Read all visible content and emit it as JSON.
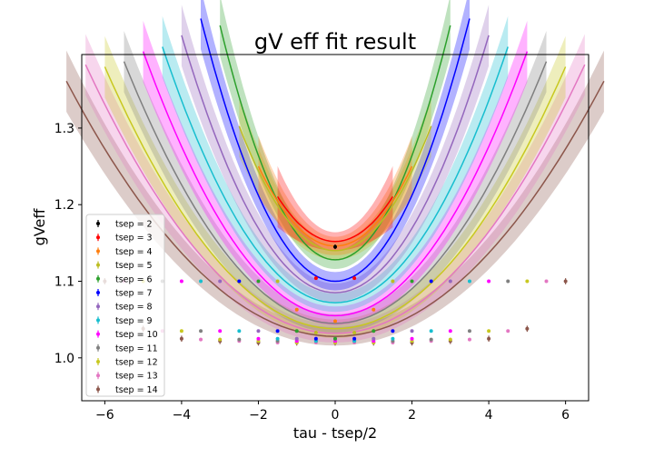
{
  "chart_data": {
    "type": "line",
    "title": "gV eff fit result",
    "xlabel": "tau - tsep/2",
    "ylabel": "gVeff",
    "xlim": [
      -6.6,
      6.6
    ],
    "ylim": [
      0.944,
      1.396
    ],
    "xticks": [
      -6,
      -4,
      -2,
      0,
      2,
      4,
      6
    ],
    "yticks": [
      1.0,
      1.1,
      1.2,
      1.3
    ],
    "xtick_labels": [
      "−6",
      "−4",
      "−2",
      "0",
      "2",
      "4",
      "6"
    ],
    "ytick_labels": [
      "1.0",
      "1.1",
      "1.2",
      "1.3"
    ],
    "legend_position": "lower-left",
    "grid": false,
    "series": [
      {
        "name": "tsep = 2",
        "color": "#000000",
        "fit": {
          "a": 1.143,
          "b": 0.0
        },
        "points": [
          {
            "x": 0,
            "y": 1.145,
            "err": 0.003
          }
        ]
      },
      {
        "name": "tsep = 3",
        "color": "#ff0000",
        "fit": {
          "a": 1.152,
          "b": 0.026
        },
        "points": [
          {
            "x": -0.5,
            "y": 1.104,
            "err": 0.002
          },
          {
            "x": 0.5,
            "y": 1.104,
            "err": 0.002
          }
        ]
      },
      {
        "name": "tsep = 4",
        "color": "#ff7f0e",
        "fit": {
          "a": 1.146,
          "b": 0.026
        },
        "points": [
          {
            "x": -1,
            "y": 1.063,
            "err": 0.002
          },
          {
            "x": 0,
            "y": 1.048,
            "err": 0.002
          },
          {
            "x": 1,
            "y": 1.063,
            "err": 0.002
          }
        ]
      },
      {
        "name": "tsep = 5",
        "color": "#bcbd22",
        "fit": {
          "a": 1.14,
          "b": 0.026
        },
        "points": [
          {
            "x": -1.5,
            "y": 1.1,
            "err": 0.002
          },
          {
            "x": -0.5,
            "y": 1.033,
            "err": 0.002
          },
          {
            "x": 0.5,
            "y": 1.033,
            "err": 0.002
          },
          {
            "x": 1.5,
            "y": 1.1,
            "err": 0.002
          }
        ]
      },
      {
        "name": "tsep = 6",
        "color": "#2ca02c",
        "fit": {
          "a": 1.128,
          "b": 0.034
        },
        "points": [
          {
            "x": -2,
            "y": 1.1,
            "err": 0.002
          },
          {
            "x": -1,
            "y": 1.035,
            "err": 0.002
          },
          {
            "x": 0,
            "y": 1.025,
            "err": 0.002
          },
          {
            "x": 1,
            "y": 1.035,
            "err": 0.002
          },
          {
            "x": 2,
            "y": 1.1,
            "err": 0.002
          }
        ]
      },
      {
        "name": "tsep = 7",
        "color": "#0000ff",
        "fit": {
          "a": 1.1,
          "b": 0.028
        },
        "points": [
          {
            "x": -2.5,
            "y": 1.1,
            "err": 0.002
          },
          {
            "x": -1.5,
            "y": 1.035,
            "err": 0.002
          },
          {
            "x": -0.5,
            "y": 1.025,
            "err": 0.002
          },
          {
            "x": 0.5,
            "y": 1.025,
            "err": 0.002
          },
          {
            "x": 1.5,
            "y": 1.035,
            "err": 0.002
          },
          {
            "x": 2.5,
            "y": 1.1,
            "err": 0.002
          }
        ]
      },
      {
        "name": "tsep = 8",
        "color": "#9467bd",
        "fit": {
          "a": 1.085,
          "b": 0.021
        },
        "points": [
          {
            "x": -3,
            "y": 1.1,
            "err": 0.002
          },
          {
            "x": -2,
            "y": 1.035,
            "err": 0.002
          },
          {
            "x": -1,
            "y": 1.025,
            "err": 0.002
          },
          {
            "x": 0,
            "y": 1.025,
            "err": 0.002
          },
          {
            "x": 1,
            "y": 1.025,
            "err": 0.002
          },
          {
            "x": 2,
            "y": 1.035,
            "err": 0.002
          },
          {
            "x": 3,
            "y": 1.1,
            "err": 0.002
          }
        ]
      },
      {
        "name": "tsep = 9",
        "color": "#17becf",
        "fit": {
          "a": 1.072,
          "b": 0.0165
        },
        "points": [
          {
            "x": -3.5,
            "y": 1.1,
            "err": 0.002
          },
          {
            "x": -2.5,
            "y": 1.035,
            "err": 0.002
          },
          {
            "x": -1.5,
            "y": 1.025,
            "err": 0.002
          },
          {
            "x": -0.5,
            "y": 1.022,
            "err": 0.002
          },
          {
            "x": 0.5,
            "y": 1.022,
            "err": 0.002
          },
          {
            "x": 1.5,
            "y": 1.025,
            "err": 0.002
          },
          {
            "x": 2.5,
            "y": 1.035,
            "err": 0.002
          },
          {
            "x": 3.5,
            "y": 1.1,
            "err": 0.002
          }
        ]
      },
      {
        "name": "tsep = 10",
        "color": "#ff00ff",
        "fit": {
          "a": 1.055,
          "b": 0.0138
        },
        "points": [
          {
            "x": -4,
            "y": 1.1,
            "err": 0.002
          },
          {
            "x": -3,
            "y": 1.035,
            "err": 0.002
          },
          {
            "x": -2,
            "y": 1.025,
            "err": 0.002
          },
          {
            "x": -1,
            "y": 1.022,
            "err": 0.002
          },
          {
            "x": 0,
            "y": 1.022,
            "err": 0.002
          },
          {
            "x": 1,
            "y": 1.022,
            "err": 0.002
          },
          {
            "x": 2,
            "y": 1.025,
            "err": 0.002
          },
          {
            "x": 3,
            "y": 1.035,
            "err": 0.002
          },
          {
            "x": 4,
            "y": 1.1,
            "err": 0.002
          }
        ]
      },
      {
        "name": "tsep = 11",
        "color": "#7f7f7f",
        "fit": {
          "a": 1.045,
          "b": 0.0113
        },
        "points": [
          {
            "x": -4.5,
            "y": 1.1,
            "err": 0.002
          },
          {
            "x": -3.5,
            "y": 1.035,
            "err": 0.002
          },
          {
            "x": -2.5,
            "y": 1.024,
            "err": 0.002
          },
          {
            "x": -1.5,
            "y": 1.022,
            "err": 0.002
          },
          {
            "x": -0.5,
            "y": 1.022,
            "err": 0.002
          },
          {
            "x": 0.5,
            "y": 1.022,
            "err": 0.002
          },
          {
            "x": 1.5,
            "y": 1.022,
            "err": 0.002
          },
          {
            "x": 2.5,
            "y": 1.024,
            "err": 0.002
          },
          {
            "x": 3.5,
            "y": 1.035,
            "err": 0.002
          },
          {
            "x": 4.5,
            "y": 1.1,
            "err": 0.002
          }
        ]
      },
      {
        "name": "tsep = 12",
        "color": "#c8c820",
        "fit": {
          "a": 1.038,
          "b": 0.0095
        },
        "points": [
          {
            "x": -5,
            "y": 1.1,
            "err": 0.002
          },
          {
            "x": -4,
            "y": 1.035,
            "err": 0.002
          },
          {
            "x": -3,
            "y": 1.024,
            "err": 0.002
          },
          {
            "x": -2,
            "y": 1.022,
            "err": 0.002
          },
          {
            "x": -1,
            "y": 1.02,
            "err": 0.002
          },
          {
            "x": 0,
            "y": 1.02,
            "err": 0.002
          },
          {
            "x": 1,
            "y": 1.02,
            "err": 0.002
          },
          {
            "x": 2,
            "y": 1.022,
            "err": 0.002
          },
          {
            "x": 3,
            "y": 1.024,
            "err": 0.002
          },
          {
            "x": 4,
            "y": 1.035,
            "err": 0.002
          },
          {
            "x": 5,
            "y": 1.1,
            "err": 0.002
          }
        ]
      },
      {
        "name": "tsep = 13",
        "color": "#e377c2",
        "fit": {
          "a": 1.032,
          "b": 0.0083
        },
        "points": [
          {
            "x": -5.5,
            "y": 1.1,
            "err": 0.002
          },
          {
            "x": -4.5,
            "y": 1.035,
            "err": 0.002
          },
          {
            "x": -3.5,
            "y": 1.024,
            "err": 0.002
          },
          {
            "x": -2.5,
            "y": 1.022,
            "err": 0.002
          },
          {
            "x": -1.5,
            "y": 1.02,
            "err": 0.002
          },
          {
            "x": -0.5,
            "y": 1.02,
            "err": 0.002
          },
          {
            "x": 0.5,
            "y": 1.02,
            "err": 0.002
          },
          {
            "x": 1.5,
            "y": 1.02,
            "err": 0.002
          },
          {
            "x": 2.5,
            "y": 1.022,
            "err": 0.002
          },
          {
            "x": 3.5,
            "y": 1.024,
            "err": 0.002
          },
          {
            "x": 4.5,
            "y": 1.035,
            "err": 0.002
          },
          {
            "x": 5.5,
            "y": 1.1,
            "err": 0.002
          }
        ]
      },
      {
        "name": "tsep = 14",
        "color": "#8c564b",
        "fit": {
          "a": 1.028,
          "b": 0.0068
        },
        "points": [
          {
            "x": -6,
            "y": 1.1,
            "err": 0.004
          },
          {
            "x": -5,
            "y": 1.038,
            "err": 0.004
          },
          {
            "x": -4,
            "y": 1.025,
            "err": 0.004
          },
          {
            "x": -3,
            "y": 1.022,
            "err": 0.004
          },
          {
            "x": -2,
            "y": 1.02,
            "err": 0.004
          },
          {
            "x": -1,
            "y": 1.02,
            "err": 0.004
          },
          {
            "x": 0,
            "y": 1.02,
            "err": 0.004
          },
          {
            "x": 1,
            "y": 1.02,
            "err": 0.004
          },
          {
            "x": 2,
            "y": 1.02,
            "err": 0.004
          },
          {
            "x": 3,
            "y": 1.022,
            "err": 0.004
          },
          {
            "x": 4,
            "y": 1.025,
            "err": 0.004
          },
          {
            "x": 5,
            "y": 1.038,
            "err": 0.004
          },
          {
            "x": 6,
            "y": 1.1,
            "err": 0.004
          }
        ]
      }
    ]
  }
}
